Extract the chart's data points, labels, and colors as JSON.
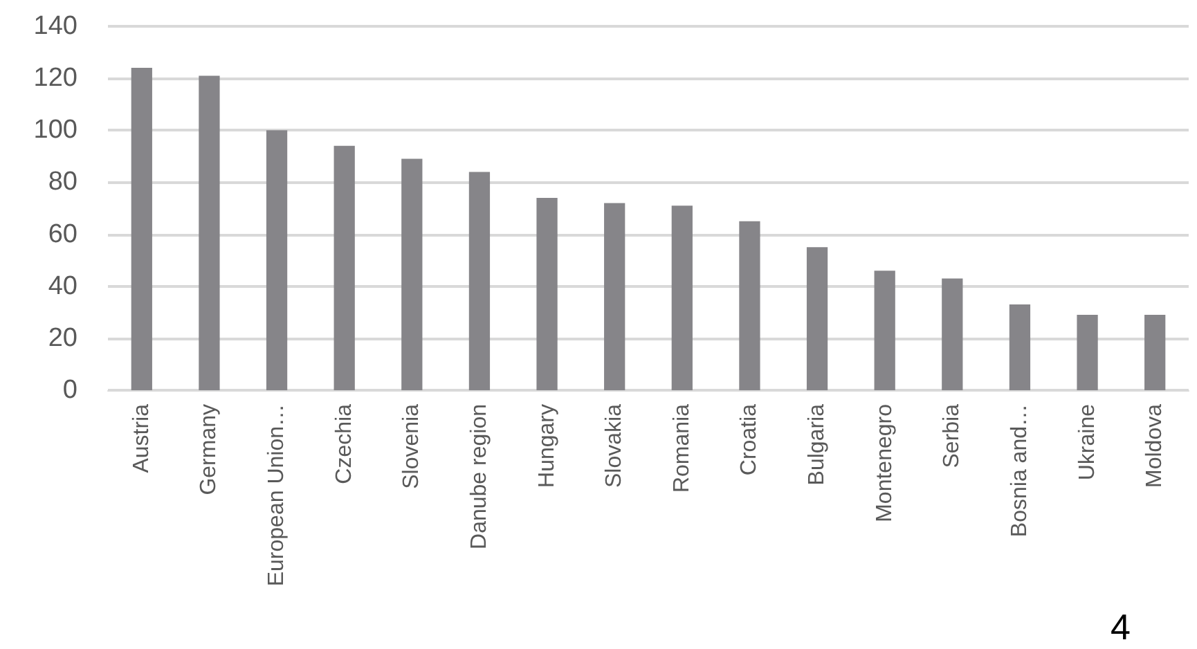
{
  "chart_data": {
    "type": "bar",
    "categories": [
      "Austria",
      "Germany",
      "European Union…",
      "Czechia",
      "Slovenia",
      "Danube region",
      "Hungary",
      "Slovakia",
      "Romania",
      "Croatia",
      "Bulgaria",
      "Montenegro",
      "Serbia",
      "Bosnia and…",
      "Ukraine",
      "Moldova"
    ],
    "values": [
      124,
      121,
      100,
      94,
      89,
      84,
      74,
      72,
      71,
      65,
      55,
      46,
      43,
      33,
      29,
      29
    ],
    "color": "#868589",
    "ylim": [
      0,
      140
    ],
    "yticks": [
      0,
      20,
      40,
      60,
      80,
      100,
      120,
      140
    ],
    "grid": "y",
    "annotations": [
      "4"
    ]
  }
}
